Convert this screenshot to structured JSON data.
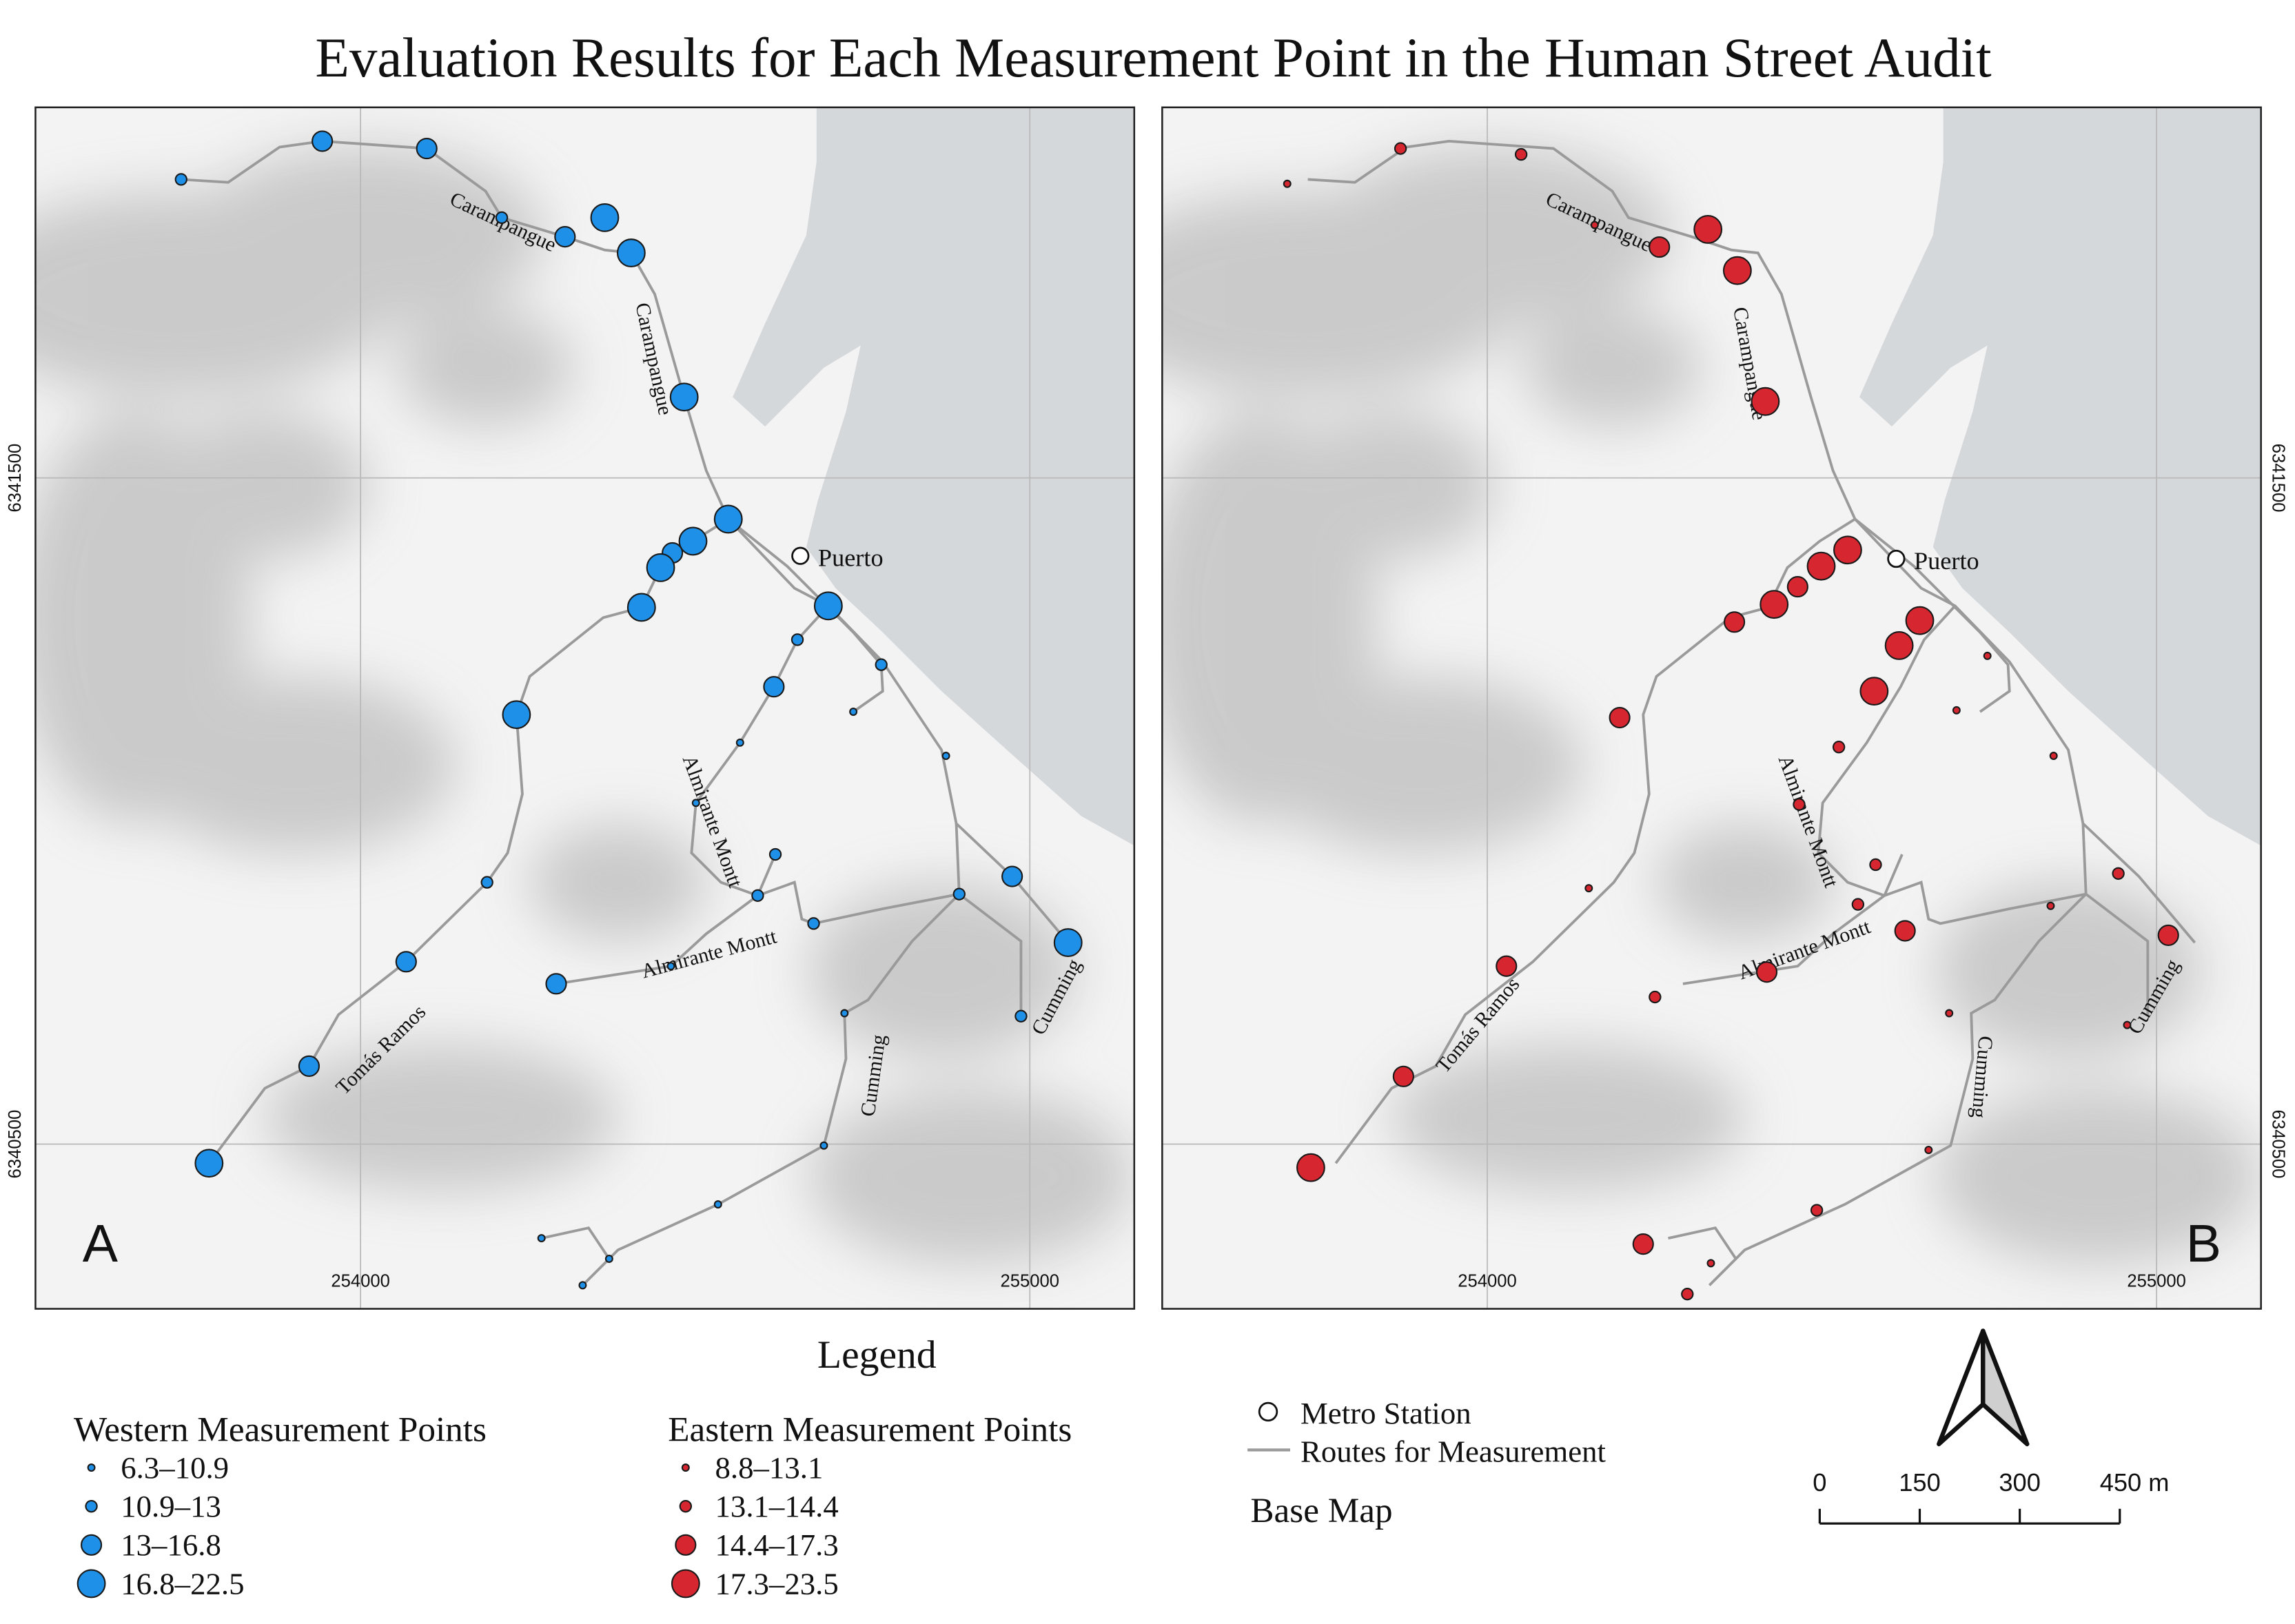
{
  "title": "Evaluation Results for Each Measurement Point in the Human Street Audit",
  "panels": [
    {
      "label": "A",
      "streets": [
        "Carampangue",
        "Carampangue",
        "Almirante Montt",
        "Almirante Montt",
        "Tomás Ramos",
        "Cumming",
        "Cumming"
      ],
      "x_ticks": [
        "254000",
        "255000"
      ],
      "y_ticks": [
        "6341500",
        "6340500"
      ],
      "station": "Puerto"
    },
    {
      "label": "B",
      "streets": [
        "Carampangue",
        "Carampangue",
        "Almirante Montt",
        "Almirante Montt",
        "Tomás Ramos",
        "Cumming",
        "Cumming"
      ],
      "x_ticks": [
        "254000",
        "255000"
      ],
      "y_ticks": [
        "6341500",
        "6340500"
      ],
      "station": "Puerto"
    }
  ],
  "legend": {
    "title": "Legend",
    "western": {
      "title": "Western Measurement Points",
      "color": "#1e90e8",
      "classes": [
        "6.3–10.9",
        "10.9–13",
        "13–16.8",
        "16.8–22.5"
      ]
    },
    "eastern": {
      "title": "Eastern Measurement Points",
      "color": "#d62630",
      "classes": [
        "8.8–13.1",
        "13.1–14.4",
        "14.4–17.3",
        "17.3–23.5"
      ]
    },
    "metro_station": "Metro Station",
    "routes": "Routes for Measurement",
    "base_map": "Base Map"
  },
  "scale_bar": {
    "labels": [
      "0",
      "150",
      "300",
      "450 m"
    ]
  }
}
